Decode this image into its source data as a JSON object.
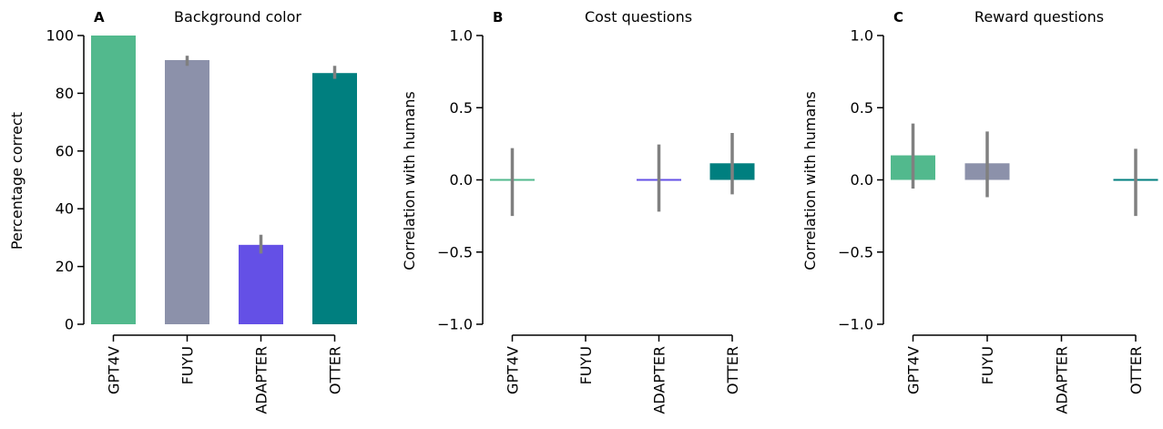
{
  "chart_data": [
    {
      "type": "bar",
      "panel_letter": "A",
      "title": "Background color",
      "xlabel": "",
      "ylabel": "Percentage correct",
      "ylim": [
        0,
        100
      ],
      "yticks": [
        0,
        20,
        40,
        60,
        80,
        100
      ],
      "ytick_labels": [
        "0",
        "20",
        "40",
        "60",
        "80",
        "100"
      ],
      "categories": [
        "GPT4V",
        "FUYU",
        "ADAPTER",
        "OTTER"
      ],
      "values": [
        100,
        91.5,
        27.5,
        87
      ],
      "error_low": [
        null,
        89.5,
        24.5,
        85
      ],
      "error_high": [
        null,
        93,
        31,
        89.5
      ],
      "colors": [
        "#52b98d",
        "#8c91aa",
        "#6450e6",
        "#007f7f"
      ],
      "grid": false
    },
    {
      "type": "bar",
      "panel_letter": "B",
      "title": "Cost questions",
      "xlabel": "",
      "ylabel": "Correlation with humans",
      "ylim": [
        -1.0,
        1.0
      ],
      "yticks": [
        -1.0,
        -0.5,
        0.0,
        0.5,
        1.0
      ],
      "ytick_labels": [
        "−1.0",
        "−0.5",
        "0.0",
        "0.5",
        "1.0"
      ],
      "categories": [
        "GPT4V",
        "FUYU",
        "ADAPTER",
        "OTTER"
      ],
      "values": [
        -0.01,
        null,
        0.005,
        0.115
      ],
      "error_low": [
        -0.25,
        null,
        -0.22,
        -0.1
      ],
      "error_high": [
        0.22,
        null,
        0.245,
        0.325
      ],
      "colors": [
        "#52b98d",
        "#8c91aa",
        "#6450e6",
        "#007f7f"
      ],
      "grid": false
    },
    {
      "type": "bar",
      "panel_letter": "C",
      "title": "Reward questions",
      "xlabel": "",
      "ylabel": "Correlation with humans",
      "ylim": [
        -1.0,
        1.0
      ],
      "yticks": [
        -1.0,
        -0.5,
        0.0,
        0.5,
        1.0
      ],
      "ytick_labels": [
        "−1.0",
        "−0.5",
        "0.0",
        "0.5",
        "1.0"
      ],
      "categories": [
        "GPT4V",
        "FUYU",
        "ADAPTER",
        "OTTER"
      ],
      "values": [
        0.17,
        0.115,
        null,
        -0.01
      ],
      "error_low": [
        -0.06,
        -0.12,
        null,
        -0.25
      ],
      "error_high": [
        0.39,
        0.335,
        null,
        0.215
      ],
      "colors": [
        "#52b98d",
        "#8c91aa",
        "#6450e6",
        "#007f7f"
      ],
      "grid": false
    }
  ]
}
